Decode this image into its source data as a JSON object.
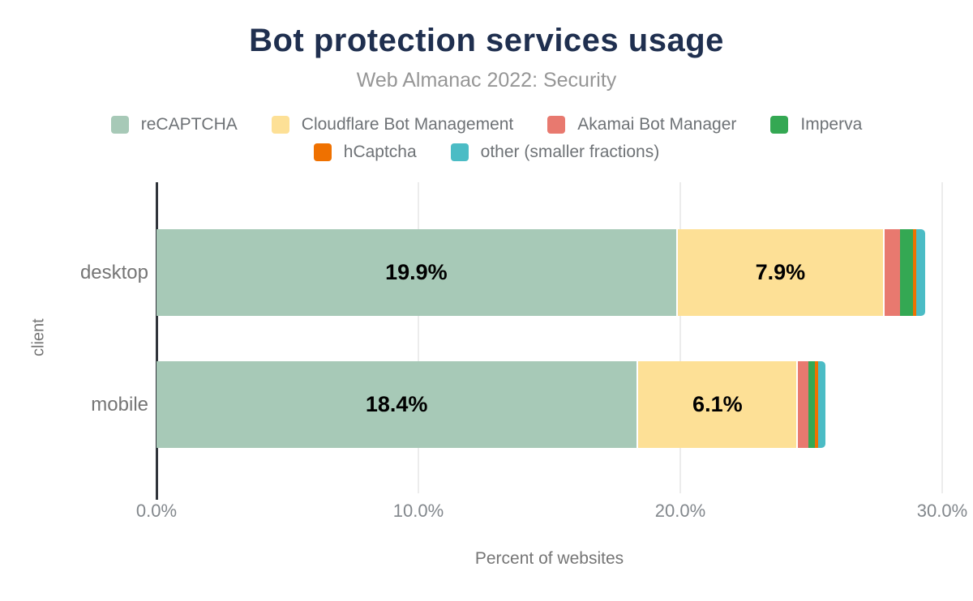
{
  "header": {
    "title": "Bot protection services usage",
    "subtitle": "Web Almanac 2022: Security"
  },
  "style": {
    "title_color": "#1f2f4f",
    "subtitle_color": "#969696",
    "axis_line_color": "#31353b",
    "gridline_color": "#ececec",
    "tick_label_color": "#82878c",
    "category_label_color": "#757575",
    "background": "#ffffff"
  },
  "chart_data": {
    "type": "bar",
    "stacked": true,
    "orientation": "horizontal",
    "title": "Bot protection services usage",
    "subtitle": "Web Almanac 2022: Security",
    "xlabel": "Percent of websites",
    "ylabel": "client",
    "categories": [
      "desktop",
      "mobile"
    ],
    "series": [
      {
        "name": "reCAPTCHA",
        "color": "#a7c9b7",
        "values": [
          19.9,
          18.4
        ],
        "labels": [
          "19.9%",
          "18.4%"
        ]
      },
      {
        "name": "Cloudflare Bot Management",
        "color": "#fde096",
        "values": [
          7.9,
          6.1
        ],
        "labels": [
          "7.9%",
          "6.1%"
        ]
      },
      {
        "name": "Akamai Bot Manager",
        "color": "#e8796f",
        "values": [
          0.6,
          0.4
        ],
        "labels": [
          null,
          null
        ]
      },
      {
        "name": "Imperva",
        "color": "#34a853",
        "values": [
          0.5,
          0.25
        ],
        "labels": [
          null,
          null
        ]
      },
      {
        "name": "hCaptcha",
        "color": "#ef7100",
        "values": [
          0.1,
          0.1
        ],
        "labels": [
          null,
          null
        ]
      },
      {
        "name": "other (smaller fractions)",
        "color": "#4bbcc5",
        "values": [
          0.35,
          0.3
        ],
        "labels": [
          null,
          null
        ]
      }
    ],
    "legend_rows": [
      4,
      2
    ],
    "x_ticks": [
      "0.0%",
      "10.0%",
      "20.0%",
      "30.0%"
    ],
    "x_tick_values": [
      0,
      10,
      20,
      30
    ],
    "xlim": [
      0,
      30
    ],
    "grid": true,
    "legend_position": "top"
  }
}
